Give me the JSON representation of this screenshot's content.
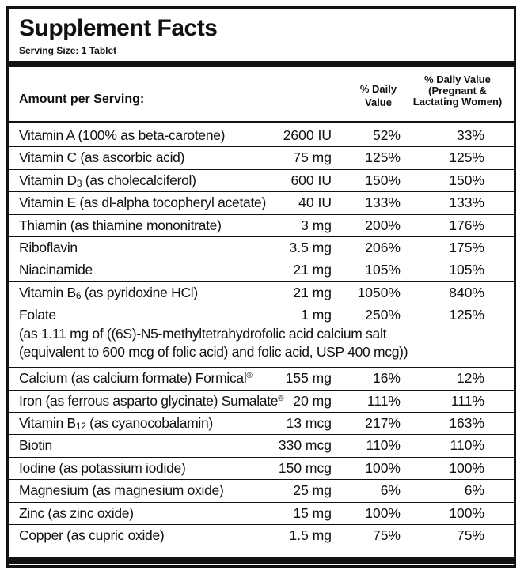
{
  "title": "Supplement Facts",
  "serving_size": "Serving Size: 1 Tablet",
  "header": {
    "amount_per_serving": "Amount per Serving:",
    "daily_value_line1": "% Daily",
    "daily_value_line2": "Value",
    "dv_pregnant_line1": "% Daily Value",
    "dv_pregnant_line2": "(Pregnant &",
    "dv_pregnant_line3": "Lactating Women)"
  },
  "rows": [
    {
      "name": "Vitamin A (100% as beta-carotene)",
      "amount": "2600 IU",
      "dv": "52%",
      "dv_pregnant": "33%"
    },
    {
      "name": "Vitamin C (as ascorbic acid)",
      "amount": "75 mg",
      "dv": "125%",
      "dv_pregnant": "125%"
    },
    {
      "name_pre": "Vitamin D",
      "name_sub": "3",
      "name_post": " (as cholecalciferol)",
      "amount": "600 IU",
      "dv": "150%",
      "dv_pregnant": "150%"
    },
    {
      "name": "Vitamin E (as dl-alpha tocopheryl acetate)",
      "amount": "40 IU",
      "dv": "133%",
      "dv_pregnant": "133%"
    },
    {
      "name": "Thiamin (as thiamine mononitrate)",
      "amount": "3 mg",
      "dv": "200%",
      "dv_pregnant": "176%"
    },
    {
      "name": "Riboflavin",
      "amount": "3.5 mg",
      "dv": "206%",
      "dv_pregnant": "175%"
    },
    {
      "name": "Niacinamide",
      "amount": "21 mg",
      "dv": "105%",
      "dv_pregnant": "105%"
    },
    {
      "name_pre": "Vitamin B",
      "name_sub": "6",
      "name_post": " (as pyridoxine HCl)",
      "amount": "21 mg",
      "dv": "1050%",
      "dv_pregnant": "840%"
    },
    {
      "name": "Folate",
      "amount": "1 mg",
      "dv": "250%",
      "dv_pregnant": "125%",
      "note_line1": "(as 1.11 mg of ((6S)-N5-methyltetrahydrofolic acid calcium salt",
      "note_line2": "(equivalent to 600 mcg of folic acid) and folic acid, USP 400 mcg))"
    },
    {
      "name_pre": "Calcium (as calcium formate) Formical",
      "name_sup": "®",
      "amount": "155 mg",
      "dv": "16%",
      "dv_pregnant": "12%"
    },
    {
      "name_pre": "Iron (as ferrous asparto glycinate) Sumalate",
      "name_sup": "®",
      "amount": "20 mg",
      "dv": "111%",
      "dv_pregnant": "111%"
    },
    {
      "name_pre": "Vitamin B",
      "name_sub": "12",
      "name_post": " (as cyanocobalamin)",
      "amount": "13 mcg",
      "dv": "217%",
      "dv_pregnant": "163%"
    },
    {
      "name": "Biotin",
      "amount": "330 mcg",
      "dv": "110%",
      "dv_pregnant": "110%"
    },
    {
      "name": "Iodine (as potassium iodide)",
      "amount": "150 mcg",
      "dv": "100%",
      "dv_pregnant": "100%"
    },
    {
      "name": "Magnesium (as magnesium oxide)",
      "amount": "25 mg",
      "dv": "6%",
      "dv_pregnant": "6%"
    },
    {
      "name": "Zinc (as zinc oxide)",
      "amount": "15 mg",
      "dv": "100%",
      "dv_pregnant": "100%"
    },
    {
      "name": "Copper (as cupric oxide)",
      "amount": "1.5 mg",
      "dv": "75%",
      "dv_pregnant": "75%"
    }
  ]
}
